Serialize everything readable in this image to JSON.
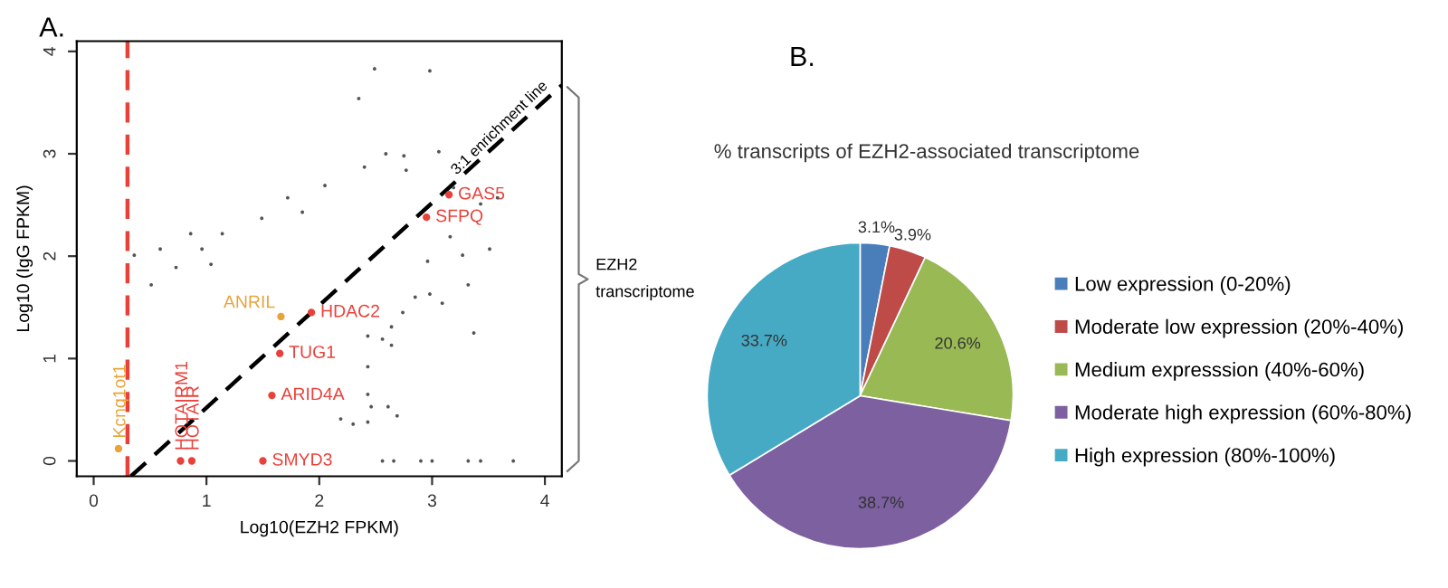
{
  "chart_data": [
    {
      "type": "scatter",
      "xlabel": "Log10(EZH2 FPKM)",
      "ylabel": "Log10 (IgG FPKM)",
      "xlim": [
        -0.15,
        4.15
      ],
      "ylim": [
        -0.15,
        4.1
      ],
      "xticks": [
        0,
        1,
        2,
        3,
        4
      ],
      "yticks": [
        0,
        1,
        2,
        3,
        4
      ],
      "grid": false,
      "legend": false,
      "marker": "circle",
      "series": [
        {
          "color": "#555555",
          "x": [
            2.49,
            2.98,
            2.35,
            2.59,
            2.75,
            2.4,
            2.77,
            3.06,
            3.19,
            2.05,
            1.72,
            1.49,
            1.85,
            0.86,
            1.14,
            0.59,
            0.96,
            0.36,
            0.73,
            1.04,
            0.51,
            3.16,
            3.27,
            2.96,
            3.51,
            3.32,
            2.98,
            2.85,
            2.74,
            2.64,
            2.56,
            2.64,
            3.09,
            3.37,
            2.43,
            2.43,
            2.43,
            2.46,
            2.61,
            2.69,
            2.19,
            2.3,
            2.43,
            2.56,
            2.66,
            2.9,
            3.0,
            3.32,
            3.43,
            3.72,
            3.58,
            3.43
          ],
          "values": [
            3.83,
            3.81,
            3.54,
            3.0,
            2.98,
            2.87,
            2.84,
            3.02,
            2.67,
            2.69,
            2.57,
            2.37,
            2.43,
            2.22,
            2.22,
            2.07,
            2.07,
            2.01,
            1.89,
            1.92,
            1.72,
            2.19,
            2.01,
            1.95,
            2.07,
            1.72,
            1.63,
            1.6,
            1.45,
            1.31,
            1.19,
            1.13,
            1.54,
            1.25,
            1.22,
            0.92,
            0.65,
            0.53,
            0.53,
            0.44,
            0.41,
            0.36,
            0.38,
            0,
            0,
            0,
            0,
            0,
            0,
            0,
            2.57,
            2.51
          ]
        },
        {
          "color": "#e8413a",
          "x": [
            0.77,
            0.87,
            1.5,
            1.58,
            1.65,
            1.93,
            2.95,
            3.15
          ],
          "values": [
            0.0,
            0.0,
            0.0,
            0.64,
            1.05,
            1.45,
            2.38,
            2.6
          ],
          "value_labels": [
            "HOTAIRM1",
            "HOTAIR",
            "SMYD3",
            "ARID4A",
            "TUG1",
            "HDAC2",
            "SFPQ",
            "GAS5"
          ]
        },
        {
          "color": "#e8a33a",
          "x": [
            0.22,
            1.66
          ],
          "values": [
            0.12,
            1.41
          ],
          "value_labels": [
            "Kcnq1ot1",
            "ANRIL"
          ]
        },
        {
          "type": "line",
          "color": "#000000",
          "line_style": "dashed",
          "marker": "none",
          "x": [
            0.33,
            4.15
          ],
          "values": [
            -0.15,
            3.67
          ]
        }
      ],
      "ref_lines": [
        {
          "axis": "x",
          "value": 0.3,
          "color": "#e8413a",
          "line_style": "dashed"
        }
      ],
      "annotations": [
        "A.",
        {
          "text": "3:1 enrichment line",
          "x": 3.6,
          "y": 3.25
        },
        "EZH2\ntranscriptome"
      ]
    },
    {
      "type": "pie",
      "title": "% transcripts of EZH2-associated transcriptome",
      "categories": [
        "Low expression (0-20%)",
        "Moderate low expression (20%-40%)",
        "Medium expresssion (40%-60%)",
        "Moderate high expression (60%-80%)",
        "High expression (80%-100%)"
      ],
      "values": [
        3.1,
        3.9,
        20.6,
        38.7,
        33.7
      ],
      "colors": [
        "#4a7ebb",
        "#be4b48",
        "#98b954",
        "#7d60a0",
        "#46aac5"
      ],
      "value_labels": [
        "3.1%",
        "3.9%",
        "20.6%",
        "38.7%",
        "33.7%"
      ],
      "legend": "right",
      "annotations": [
        "B."
      ]
    }
  ]
}
